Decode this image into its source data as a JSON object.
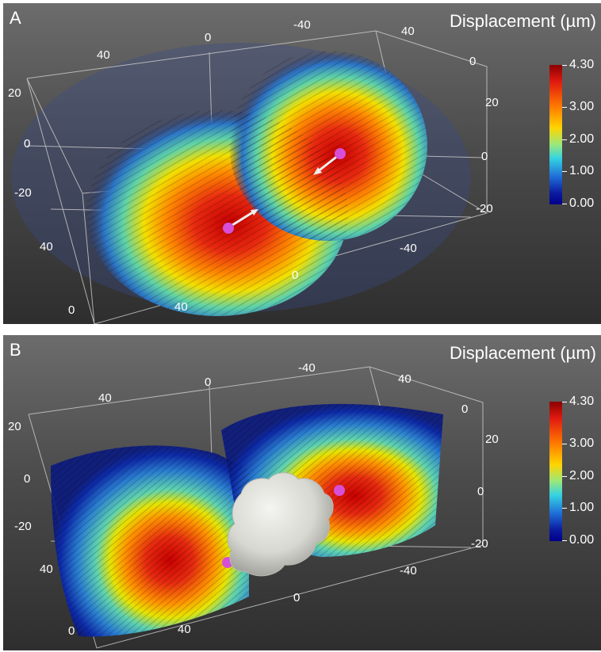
{
  "panels": [
    {
      "letter": "A",
      "legend_title": "Displacement (µm)",
      "colorbar_labels": [
        "4.30",
        "3.00",
        "2.00",
        "1.00",
        "0.00"
      ],
      "axis_tick_labels": [
        "40",
        "0",
        "-40",
        "40",
        "0",
        "20",
        "0",
        "-20",
        "20",
        "0",
        "-20",
        "40",
        "0",
        "40",
        "0",
        "-40"
      ]
    },
    {
      "letter": "B",
      "legend_title": "Displacement (µm)",
      "colorbar_labels": [
        "4.30",
        "3.00",
        "2.00",
        "1.00",
        "0.00"
      ],
      "axis_tick_labels": [
        "40",
        "0",
        "-40",
        "40",
        "0",
        "20",
        "0",
        "-20",
        "20",
        "0",
        "-20",
        "40",
        "0",
        "40",
        "0",
        "-40"
      ]
    }
  ]
}
